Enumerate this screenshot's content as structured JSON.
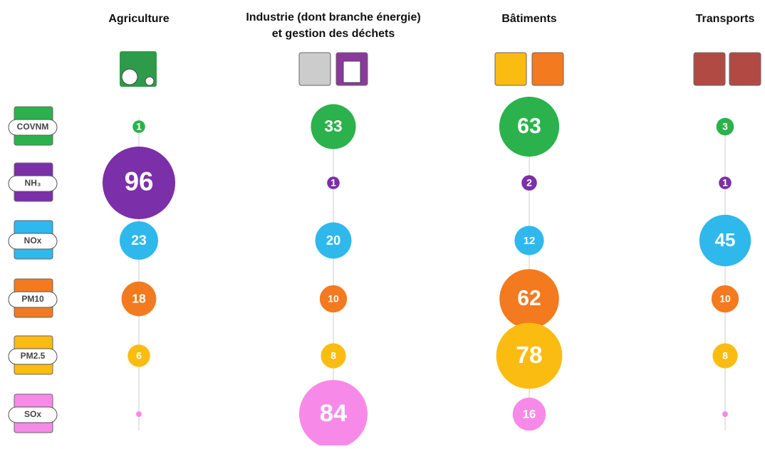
{
  "chart_data": {
    "type": "bubble-matrix",
    "categories": [
      [
        "Agriculture"
      ],
      [
        "Industrie (dont branche énergie)",
        "et gestion des déchets"
      ],
      [
        "Bâtiments"
      ],
      [
        "Transports"
      ]
    ],
    "series": [
      {
        "name": "COVNM",
        "color": "#2bb24c",
        "values": [
          1,
          33,
          63,
          3
        ],
        "value_labels": [
          "1",
          "33",
          "63",
          "3"
        ]
      },
      {
        "name": "NH₃",
        "color": "#7b2fa8",
        "values": [
          96,
          1,
          2,
          1
        ],
        "value_labels": [
          "96",
          "1",
          "2",
          "1"
        ]
      },
      {
        "name": "NOx",
        "color": "#2fb8ec",
        "values": [
          23,
          20,
          12,
          45
        ],
        "value_labels": [
          "23",
          "20",
          "12",
          "45"
        ]
      },
      {
        "name": "PM10",
        "color": "#f47a1f",
        "values": [
          18,
          10,
          62,
          10
        ],
        "value_labels": [
          "18",
          "10",
          "62",
          "10"
        ]
      },
      {
        "name": "PM2.5",
        "color": "#fbbc12",
        "values": [
          6,
          8,
          78,
          8
        ],
        "value_labels": [
          "6",
          "8",
          "78",
          "8"
        ]
      },
      {
        "name": "SOx",
        "color": "#f78ae8",
        "values": [
          0,
          84,
          16,
          0
        ],
        "value_labels": [
          null,
          "84",
          "16",
          null
        ]
      }
    ]
  }
}
